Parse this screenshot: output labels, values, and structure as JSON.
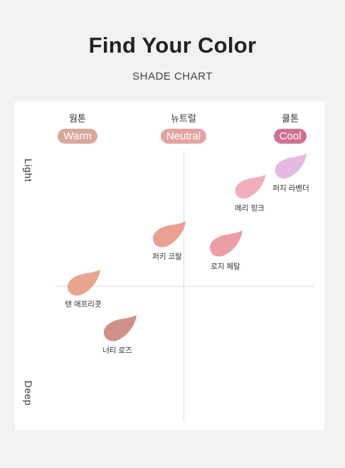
{
  "header": {
    "title": "Find Your Color",
    "subtitle": "SHADE CHART"
  },
  "tones": [
    {
      "ko": "웜톤",
      "en": "Warm",
      "color": "#d9a79b"
    },
    {
      "ko": "뉴트럴",
      "en": "Neutral",
      "color": "#e4a3a0"
    },
    {
      "ko": "쿨톤",
      "en": "Cool",
      "color": "#cf7290"
    }
  ],
  "axis": {
    "top": "Light",
    "bottom": "Deep"
  },
  "shades": [
    {
      "name": "퍼지 라벤더",
      "color": "#e6b9e1"
    },
    {
      "name": "메리 핑크",
      "color": "#f1aebb"
    },
    {
      "name": "퍼키 코랄",
      "color": "#eaa191"
    },
    {
      "name": "로지 페탈",
      "color": "#eb9fa4"
    },
    {
      "name": "탠 애프리콧",
      "color": "#e9a58e"
    },
    {
      "name": "너티 로즈",
      "color": "#cf9187"
    }
  ]
}
